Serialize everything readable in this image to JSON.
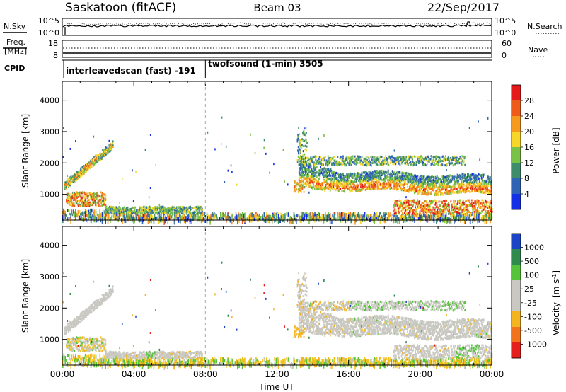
{
  "header": {
    "title_left": "Saskatoon (fitACF)",
    "title_center": "Beam 03",
    "title_right": "22/Sep/2017"
  },
  "sky_panel": {
    "label": "N.Sky",
    "left_top": "10^5",
    "left_bottom": "10^0",
    "right_top": "10^5",
    "right_bottom": "10^0",
    "right_label": "N.Search"
  },
  "freq_panel": {
    "label_top": "Freq.",
    "label_bottom": "[MHz]",
    "left_top": "18",
    "left_bottom": "8",
    "right_top": "60",
    "right_bottom": "0",
    "right_label": "Nave"
  },
  "cpid_panel": {
    "label": "CPID",
    "segment_1": "interleavedscan (fast) -191",
    "segment_2": "twofsound (1-min) 3505",
    "switch_time_hours": 8
  },
  "chart_data": [
    {
      "type": "heatmap",
      "name": "Power",
      "ylabel": "Slant Range [km]",
      "xlabel": "",
      "x_range_hours": [
        0,
        24
      ],
      "ylim": [
        180,
        4600
      ],
      "yticks": [
        1000,
        2000,
        3000,
        4000
      ],
      "colorbar": {
        "label": "Power [dB]",
        "ticks": [
          "4",
          "8",
          "12",
          "16",
          "20",
          "24",
          "28"
        ],
        "colors": [
          "#1430e6",
          "#2f63b6",
          "#3f8c6a",
          "#79c245",
          "#f7d629",
          "#f59a1f",
          "#ee5a1a",
          "#e6191a"
        ]
      }
    },
    {
      "type": "heatmap",
      "name": "Velocity",
      "ylabel": "Slant Range [km]",
      "xlabel": "Time UT",
      "x_range_hours": [
        0,
        24
      ],
      "ylim": [
        180,
        4600
      ],
      "yticks": [
        1000,
        2000,
        3000,
        4000
      ],
      "xticks": [
        "00:00",
        "04:00",
        "08:00",
        "12:00",
        "16:00",
        "20:00",
        "00:00"
      ],
      "colorbar": {
        "label": "Velocity",
        "unit": "[m s",
        "unit_exp": "-1",
        "ticks": [
          "1000",
          "500",
          "100",
          "25",
          "-25",
          "-100",
          "-500",
          "-1000"
        ],
        "colors": [
          "#1b44c6",
          "#2f8a4e",
          "#55c43a",
          "#c9c8c2",
          "#c9c8c2",
          "#f4b41f",
          "#f1741c",
          "#e41f1c"
        ]
      }
    }
  ]
}
